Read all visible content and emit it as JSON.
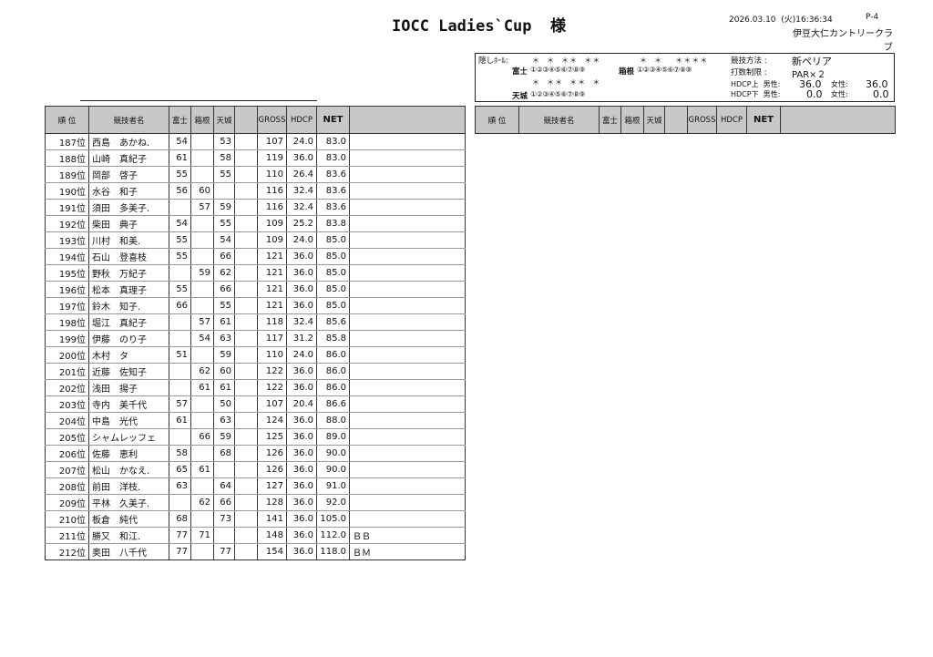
{
  "header": {
    "title": "IOCC Ladies`Cup  様",
    "datetime": "2026.03.10  (火)16:36:34",
    "page": "P-4",
    "club": "伊豆大仁カントリークラブ"
  },
  "info": {
    "hidden_label": "隠しﾎｰﾙ:",
    "fuji_stars": "＊  ＊  ＊＊  ＊＊",
    "hakone_stars": "＊  ＊    ＊＊＊＊",
    "amagi_stars": "＊  ＊＊  ＊＊  ＊",
    "fuji_label": "富士",
    "hakone_label": "箱根",
    "amagi_label": "天城",
    "holes": "①②③④⑤⑥⑦⑧⑨",
    "method_label": "競技方法 :",
    "method_value": "新ペリア",
    "limit_label": "打数制限 :",
    "limit_value": "PAR×２",
    "hdcp_upper_label": "HDCP上  男性:",
    "hdcp_upper_male": "36.0",
    "female_label": "女性:",
    "hdcp_upper_female": "36.0",
    "hdcp_lower_label": "HDCP下  男性:",
    "hdcp_lower_male": "0.0",
    "hdcp_lower_female": "0.0"
  },
  "columns": [
    "順 位",
    "競技者名",
    "富士",
    "箱根",
    "天城",
    "",
    "GROSS",
    "HDCP",
    "NET",
    ""
  ],
  "rows": [
    [
      "187位",
      "西島　あかね.",
      "54",
      "",
      "53",
      "",
      "107",
      "24.0",
      "83.0",
      ""
    ],
    [
      "188位",
      "山崎　真紀子",
      "61",
      "",
      "58",
      "",
      "119",
      "36.0",
      "83.0",
      ""
    ],
    [
      "189位",
      "岡部　啓子",
      "55",
      "",
      "55",
      "",
      "110",
      "26.4",
      "83.6",
      ""
    ],
    [
      "190位",
      "水谷　和子",
      "56",
      "60",
      "",
      "",
      "116",
      "32.4",
      "83.6",
      ""
    ],
    [
      "191位",
      "須田　多美子.",
      "",
      "57",
      "59",
      "",
      "116",
      "32.4",
      "83.6",
      ""
    ],
    [
      "192位",
      "柴田　典子",
      "54",
      "",
      "55",
      "",
      "109",
      "25.2",
      "83.8",
      ""
    ],
    [
      "193位",
      "川村　和美.",
      "55",
      "",
      "54",
      "",
      "109",
      "24.0",
      "85.0",
      ""
    ],
    [
      "194位",
      "石山　登喜枝",
      "55",
      "",
      "66",
      "",
      "121",
      "36.0",
      "85.0",
      ""
    ],
    [
      "195位",
      "野秋　万紀子",
      "",
      "59",
      "62",
      "",
      "121",
      "36.0",
      "85.0",
      ""
    ],
    [
      "196位",
      "松本　真理子",
      "55",
      "",
      "66",
      "",
      "121",
      "36.0",
      "85.0",
      ""
    ],
    [
      "197位",
      "鈴木　知子.",
      "66",
      "",
      "55",
      "",
      "121",
      "36.0",
      "85.0",
      ""
    ],
    [
      "198位",
      "堀江　真紀子",
      "",
      "57",
      "61",
      "",
      "118",
      "32.4",
      "85.6",
      ""
    ],
    [
      "199位",
      "伊藤　のり子",
      "",
      "54",
      "63",
      "",
      "117",
      "31.2",
      "85.8",
      ""
    ],
    [
      "200位",
      "木村　タ",
      "51",
      "",
      "59",
      "",
      "110",
      "24.0",
      "86.0",
      ""
    ],
    [
      "201位",
      "近藤　佐知子",
      "",
      "62",
      "60",
      "",
      "122",
      "36.0",
      "86.0",
      ""
    ],
    [
      "202位",
      "浅田　揚子",
      "",
      "61",
      "61",
      "",
      "122",
      "36.0",
      "86.0",
      ""
    ],
    [
      "203位",
      "寺内　美千代",
      "57",
      "",
      "50",
      "",
      "107",
      "20.4",
      "86.6",
      ""
    ],
    [
      "204位",
      "中島　光代",
      "61",
      "",
      "63",
      "",
      "124",
      "36.0",
      "88.0",
      ""
    ],
    [
      "205位",
      "シャムレッフェ",
      "",
      "66",
      "59",
      "",
      "125",
      "36.0",
      "89.0",
      ""
    ],
    [
      "206位",
      "佐藤　恵利",
      "58",
      "",
      "68",
      "",
      "126",
      "36.0",
      "90.0",
      ""
    ],
    [
      "207位",
      "松山　かなえ.",
      "65",
      "61",
      "",
      "",
      "126",
      "36.0",
      "90.0",
      ""
    ],
    [
      "208位",
      "前田　洋枝.",
      "63",
      "",
      "64",
      "",
      "127",
      "36.0",
      "91.0",
      ""
    ],
    [
      "209位",
      "平林　久美子.",
      "",
      "62",
      "66",
      "",
      "128",
      "36.0",
      "92.0",
      ""
    ],
    [
      "210位",
      "板倉　純代",
      "68",
      "",
      "73",
      "",
      "141",
      "36.0",
      "105.0",
      ""
    ],
    [
      "211位",
      "勝又　和江.",
      "77",
      "71",
      "",
      "",
      "148",
      "36.0",
      "112.0",
      "ＢＢ"
    ],
    [
      "212位",
      "奥田　八千代",
      "77",
      "",
      "77",
      "",
      "154",
      "36.0",
      "118.0",
      "ＢＭ"
    ]
  ]
}
